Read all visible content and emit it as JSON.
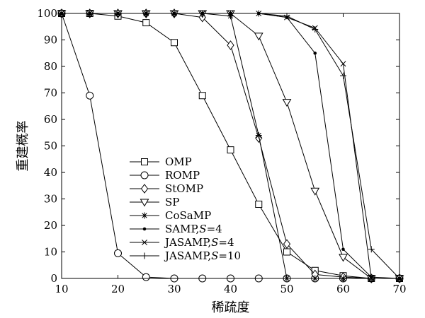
{
  "chart_data": {
    "type": "line",
    "xlabel": "稀疏度",
    "ylabel": "重建概率",
    "xlim": [
      10,
      70
    ],
    "ylim": [
      0,
      100
    ],
    "xticks": [
      10,
      20,
      30,
      40,
      50,
      60,
      70
    ],
    "yticks": [
      0,
      10,
      20,
      30,
      40,
      50,
      60,
      70,
      80,
      90,
      100
    ],
    "grid": false,
    "legend_position": "lower-left",
    "x": [
      10,
      15,
      20,
      25,
      30,
      35,
      40,
      45,
      50,
      55,
      60,
      65,
      70
    ],
    "series": [
      {
        "name": "OMP",
        "marker": "square",
        "values": [
          100,
          100,
          99,
          96.5,
          89,
          69,
          48.5,
          28,
          10,
          3,
          1,
          0,
          0
        ]
      },
      {
        "name": "ROMP",
        "marker": "circle",
        "values": [
          100,
          69,
          9.5,
          0.5,
          0,
          0,
          0,
          0,
          0,
          0,
          0,
          0,
          0
        ]
      },
      {
        "name": "StOMP",
        "marker": "diamond",
        "values": [
          100,
          100,
          100,
          100,
          100,
          98.5,
          88,
          53,
          13,
          1.5,
          0.5,
          0,
          0
        ]
      },
      {
        "name": "SP",
        "marker": "triangle-down",
        "values": [
          100,
          100,
          100,
          100,
          100,
          100,
          100,
          91.5,
          66.5,
          33,
          8,
          0,
          0
        ]
      },
      {
        "name": "CoSaMP",
        "marker": "asterisk",
        "values": [
          100,
          100,
          100,
          100,
          100,
          100,
          99,
          54,
          0,
          0,
          0,
          0,
          0
        ]
      },
      {
        "name": "SAMP,S=4",
        "label_parts": [
          "SAMP,",
          "S",
          "=4"
        ],
        "marker": "dot",
        "values": [
          100,
          100,
          100,
          100,
          100,
          100,
          100,
          100,
          98.5,
          85,
          11,
          0.5,
          0
        ]
      },
      {
        "name": "JASAMP,S=4",
        "label_parts": [
          "JASAMP,",
          "S",
          "=4"
        ],
        "marker": "x",
        "values": [
          100,
          100,
          100,
          100,
          100,
          100,
          100,
          100,
          98.5,
          94.5,
          81,
          0,
          0
        ]
      },
      {
        "name": "JASAMP,S=10",
        "label_parts": [
          "JASAMP,",
          "S",
          "=10"
        ],
        "marker": "plus",
        "values": [
          100,
          100,
          100,
          100,
          100,
          100,
          100,
          100,
          99,
          94,
          76.5,
          11,
          0
        ]
      }
    ]
  }
}
